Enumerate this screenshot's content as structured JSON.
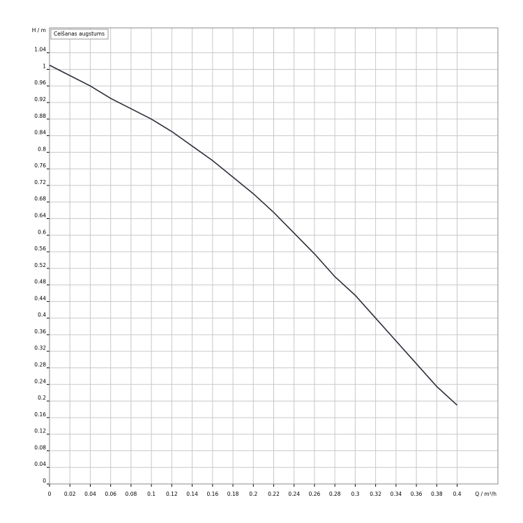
{
  "chart_data": {
    "type": "line",
    "x_label": "Q / m³/h",
    "y_label": "H / m",
    "x": [
      0,
      0.02,
      0.04,
      0.06,
      0.08,
      0.1,
      0.12,
      0.14,
      0.16,
      0.18,
      0.2,
      0.22,
      0.24,
      0.26,
      0.28,
      0.3,
      0.32,
      0.34,
      0.36,
      0.38,
      0.4
    ],
    "series": [
      {
        "name": "Celšanas augstums",
        "color": "#2b2f3a",
        "values": [
          1.01,
          0.985,
          0.96,
          0.93,
          0.905,
          0.88,
          0.85,
          0.815,
          0.78,
          0.74,
          0.7,
          0.655,
          0.605,
          0.555,
          0.5,
          0.455,
          0.4,
          0.345,
          0.29,
          0.235,
          0.19
        ]
      }
    ],
    "xlim": [
      0,
      0.44
    ],
    "ylim": [
      0,
      1.1
    ],
    "xticks": [
      0,
      0.02,
      0.04,
      0.06,
      0.08,
      0.1,
      0.12,
      0.14,
      0.16,
      0.18,
      0.2,
      0.22,
      0.24,
      0.26,
      0.28,
      0.3,
      0.32,
      0.34,
      0.36,
      0.38,
      0.4
    ],
    "yticks": [
      0,
      0.04,
      0.08,
      0.12,
      0.16,
      0.2,
      0.24,
      0.28,
      0.32,
      0.36,
      0.4,
      0.44,
      0.48,
      0.52,
      0.56,
      0.6,
      0.64,
      0.68,
      0.72,
      0.76,
      0.8,
      0.84,
      0.88,
      0.92,
      0.96,
      1,
      1.04
    ],
    "grid": true
  }
}
